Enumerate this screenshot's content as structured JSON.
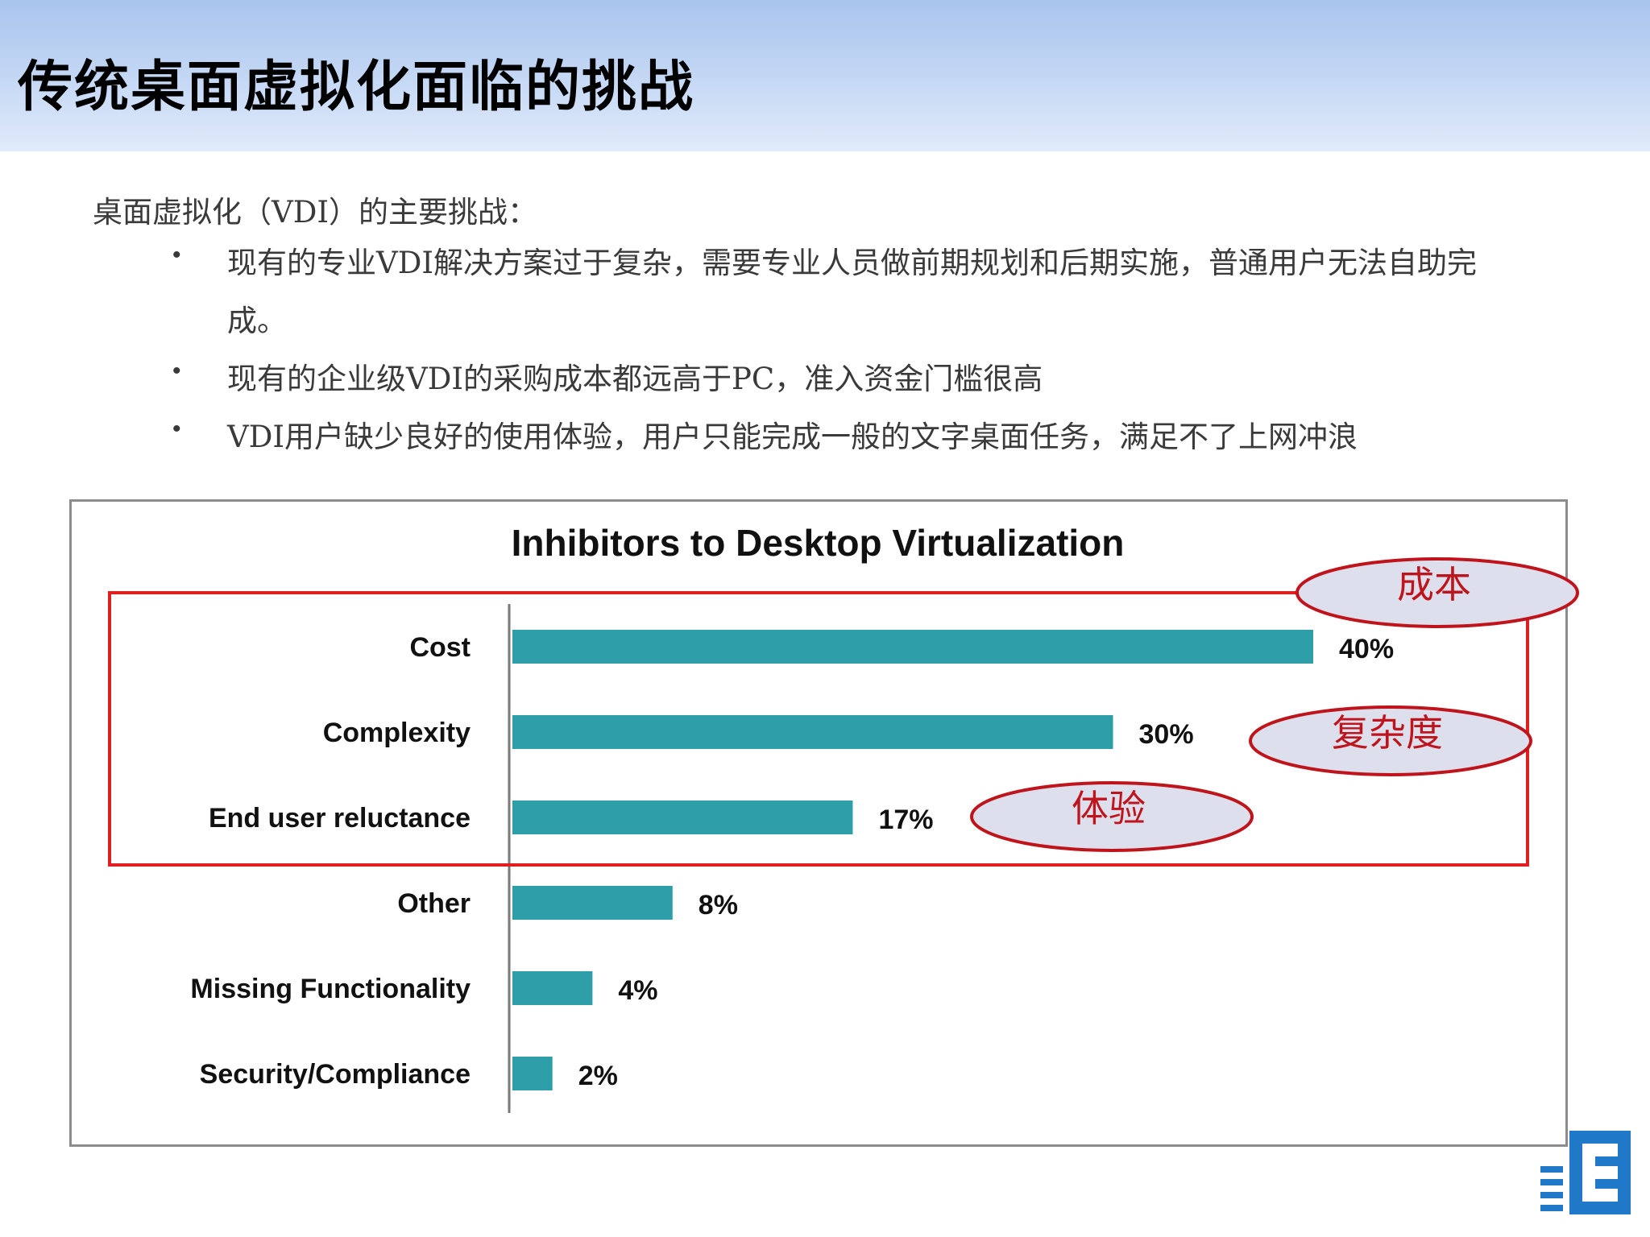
{
  "slide": {
    "title": "传统桌面虚拟化面临的挑战",
    "intro": "桌面虚拟化（VDI）的主要挑战：",
    "bullets": [
      {
        "marker": "•",
        "text": "现有的专业VDI解决方案过于复杂，需要专业人员做前期规划和后期实施，普通用户无法自助完成。"
      },
      {
        "marker": "•",
        "text": "现有的企业级VDI的采购成本都远高于PC，准入资金门槛很高"
      },
      {
        "marker": "•",
        "text": "VDI用户缺少良好的使用体验，用户只能完成一般的文字桌面任务，满足不了上网冲浪"
      }
    ]
  },
  "chart_data": {
    "type": "bar",
    "orientation": "horizontal",
    "title": "Inhibitors to Desktop Virtualization",
    "categories": [
      "Cost",
      "Complexity",
      "End user reluctance",
      "Other",
      "Missing Functionality",
      "Security/Compliance"
    ],
    "values": [
      40,
      30,
      17,
      8,
      4,
      2
    ],
    "value_labels": [
      "40%",
      "30%",
      "17%",
      "8%",
      "4%",
      "2%"
    ],
    "xlim": [
      0,
      40
    ],
    "grid": false,
    "bar_color": "#2e9fa9",
    "highlight_box": {
      "categories": [
        "Cost",
        "Complexity",
        "End user reluctance"
      ],
      "color": "#e02020"
    },
    "annotations": [
      {
        "text": "成本",
        "category": "Cost"
      },
      {
        "text": "复杂度",
        "category": "Complexity"
      },
      {
        "text": "体验",
        "category": "End user reluctance"
      }
    ],
    "annotation_style": {
      "fill": "#dde0ec",
      "stroke": "#c0141c",
      "text_color": "#c0141c"
    }
  },
  "logo": {
    "icon": "company-logo-icon",
    "color": "#1f78c8"
  }
}
